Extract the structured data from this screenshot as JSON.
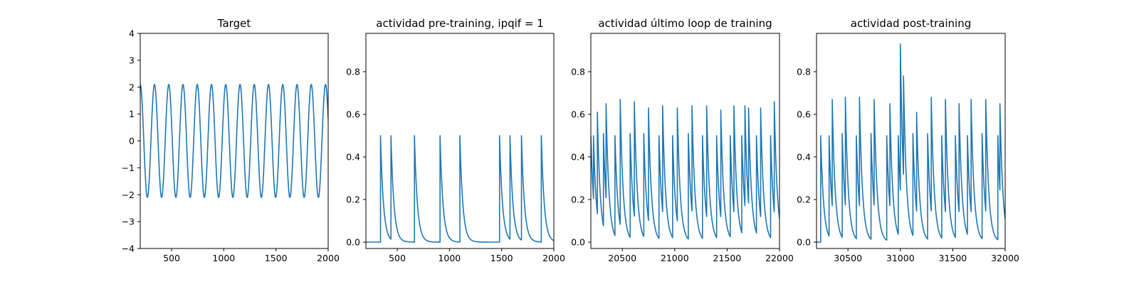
{
  "colors": {
    "series": "#1f77b4",
    "axes": "#000000",
    "background": "#ffffff"
  },
  "chart_data": [
    {
      "type": "line",
      "title": "Target",
      "xlim": [
        200,
        2000
      ],
      "ylim": [
        -4,
        4
      ],
      "xticks": [
        500,
        1000,
        1500,
        2000
      ],
      "yticks": [
        -4,
        -3,
        -2,
        -1,
        0,
        1,
        2,
        3,
        4
      ],
      "grid": false,
      "legend": "none",
      "series": [
        {
          "kind": "sine",
          "amplitude": 2.1,
          "period": 136.5,
          "phase_x": 200,
          "x_start": 200,
          "x_end": 2000
        }
      ]
    },
    {
      "type": "line",
      "title": "actividad pre-training, ipqif = 1",
      "xlim": [
        200,
        2000
      ],
      "ylim": [
        -0.03,
        0.98
      ],
      "xticks": [
        500,
        1000,
        1500,
        2000
      ],
      "yticks": [
        0.0,
        0.2,
        0.4,
        0.6,
        0.8
      ],
      "grid": false,
      "legend": "none",
      "series": [
        {
          "kind": "spike_train",
          "x_start": 200,
          "x_end": 2000,
          "baseline": 0.0,
          "decay": 28,
          "spike_x": [
            340,
            440,
            665,
            910,
            1100,
            1480,
            1580,
            1690,
            1880
          ],
          "spike_y": [
            0.5,
            0.5,
            0.5,
            0.5,
            0.5,
            0.5,
            0.5,
            0.5,
            0.5
          ]
        }
      ]
    },
    {
      "type": "line",
      "title": "actividad último loop de training",
      "xlim": [
        20200,
        22000
      ],
      "ylim": [
        -0.03,
        0.98
      ],
      "xticks": [
        20500,
        21000,
        21500,
        22000
      ],
      "yticks": [
        0.0,
        0.2,
        0.4,
        0.6,
        0.8
      ],
      "grid": false,
      "legend": "none",
      "series": [
        {
          "kind": "spike_train",
          "x_start": 20200,
          "x_end": 22000,
          "baseline": 0.0,
          "decay": 28,
          "initial_value": 0.5,
          "spike_x": [
            20225,
            20262,
            20320,
            20345,
            20430,
            20480,
            20575,
            20615,
            20705,
            20750,
            20850,
            20885,
            20980,
            21025,
            21130,
            21165,
            21265,
            21305,
            21400,
            21440,
            21530,
            21565,
            21640,
            21670,
            21705,
            21780,
            21820,
            21915,
            21950
          ],
          "spike_y": [
            0.5,
            0.61,
            0.51,
            0.65,
            0.5,
            0.67,
            0.51,
            0.66,
            0.51,
            0.63,
            0.5,
            0.64,
            0.5,
            0.63,
            0.51,
            0.64,
            0.5,
            0.64,
            0.5,
            0.62,
            0.5,
            0.64,
            0.5,
            0.64,
            0.63,
            0.5,
            0.63,
            0.5,
            0.66
          ]
        }
      ]
    },
    {
      "type": "line",
      "title": "actividad post-training",
      "xlim": [
        30200,
        32000
      ],
      "ylim": [
        -0.03,
        0.98
      ],
      "xticks": [
        30500,
        31000,
        31500,
        32000
      ],
      "yticks": [
        0.0,
        0.2,
        0.4,
        0.6,
        0.8
      ],
      "grid": false,
      "legend": "none",
      "series": [
        {
          "kind": "spike_train",
          "x_start": 30200,
          "x_end": 32000,
          "baseline": 0.0,
          "decay": 28,
          "spike_x": [
            30240,
            30320,
            30350,
            30445,
            30475,
            30580,
            30610,
            30720,
            30750,
            30870,
            30900,
            30980,
            31000,
            31030,
            31120,
            31155,
            31260,
            31295,
            31395,
            31430,
            31525,
            31560,
            31640,
            31675,
            31780,
            31815,
            31930,
            31950
          ],
          "spike_y": [
            0.5,
            0.5,
            0.67,
            0.51,
            0.68,
            0.5,
            0.68,
            0.51,
            0.67,
            0.5,
            0.65,
            0.5,
            0.93,
            0.78,
            0.51,
            0.61,
            0.51,
            0.68,
            0.5,
            0.67,
            0.5,
            0.65,
            0.5,
            0.67,
            0.51,
            0.67,
            0.5,
            0.65
          ]
        }
      ]
    }
  ]
}
